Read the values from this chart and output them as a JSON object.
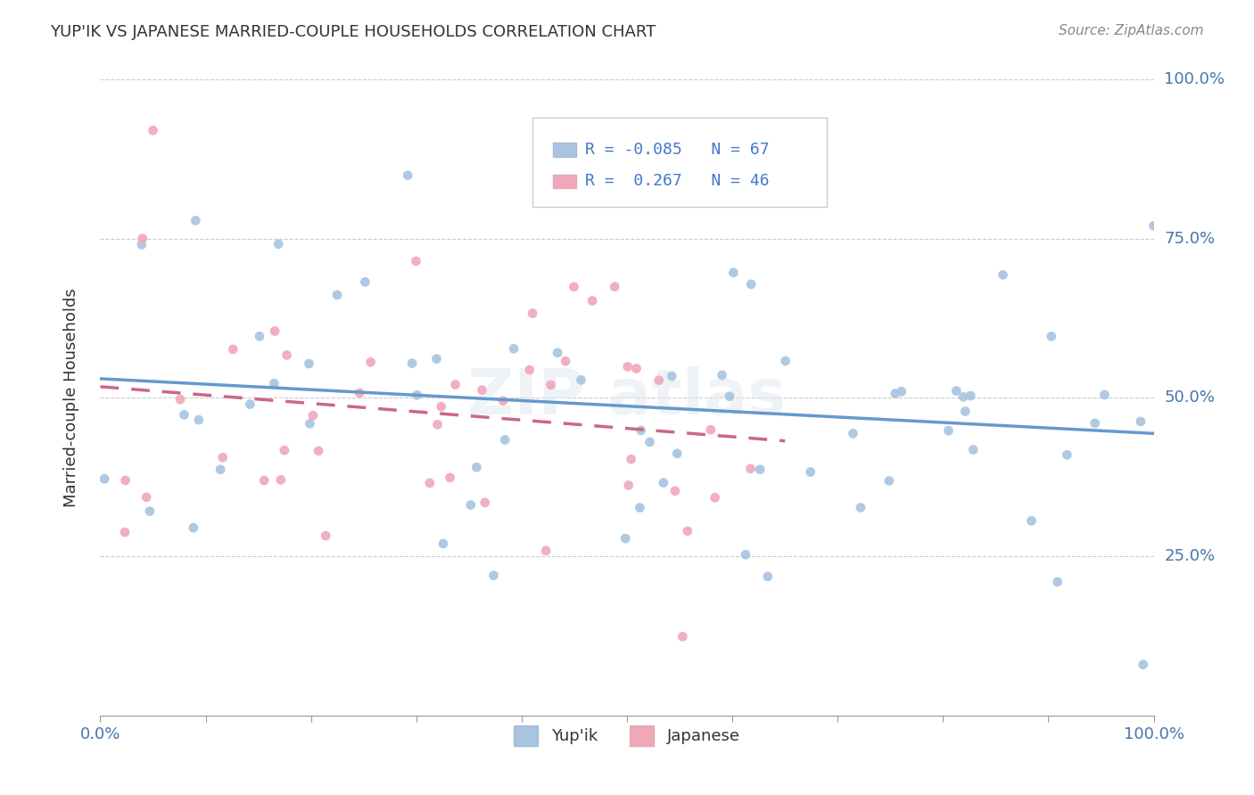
{
  "title": "YUP'IK VS JAPANESE MARRIED-COUPLE HOUSEHOLDS CORRELATION CHART",
  "source_text": "Source: ZipAtlas.com",
  "ylabel": "Married-couple Households",
  "legend_r1": "R = -0.085",
  "legend_n1": "N = 67",
  "legend_r2": "R =  0.267",
  "legend_n2": "N = 46",
  "color_blue": "#a8c4e0",
  "color_pink": "#f0a8b8",
  "line_blue": "#6699cc",
  "line_pink": "#cc6688",
  "y_tick_labels": [
    "25.0%",
    "50.0%",
    "75.0%",
    "100.0%"
  ],
  "y_tick_vals": [
    0.25,
    0.5,
    0.75,
    1.0
  ]
}
